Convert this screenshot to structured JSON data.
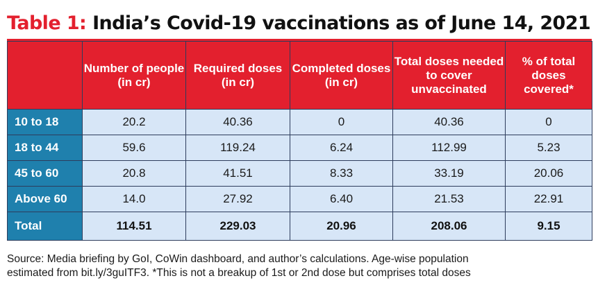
{
  "title": {
    "label": "Table 1:",
    "text": "India’s Covid-19 vaccinations as of June 14, 2021"
  },
  "columns": [
    "",
    "Number of people (in cr)",
    "Required doses (in cr)",
    "Completed doses (in cr)",
    "Total doses needed to cover unvaccinated",
    "% of total doses covered*"
  ],
  "rows": [
    {
      "group": "10 to 18",
      "values": [
        "20.2",
        "40.36",
        "0",
        "40.36",
        "0"
      ]
    },
    {
      "group": "18 to 44",
      "values": [
        "59.6",
        "119.24",
        "6.24",
        "112.99",
        "5.23"
      ]
    },
    {
      "group": "45 to 60",
      "values": [
        "20.8",
        "41.51",
        "8.33",
        "33.19",
        "20.06"
      ]
    },
    {
      "group": "Above 60",
      "values": [
        "14.0",
        "27.92",
        "6.40",
        "21.53",
        "22.91"
      ]
    }
  ],
  "total": {
    "group": "Total",
    "values": [
      "114.51",
      "229.03",
      "20.96",
      "208.06",
      "9.15"
    ]
  },
  "source": {
    "line1": "Source: Media briefing by GoI, CoWin dashboard, and author’s calculations. Age-wise population",
    "line2": "estimated from bit.ly/3guITF3. *This is not a breakup of 1st or 2nd dose but comprises total doses"
  },
  "colors": {
    "accent_red": "#e3202e",
    "row_label_blue": "#1f80ad",
    "cell_light_blue": "#d7e6f7"
  }
}
